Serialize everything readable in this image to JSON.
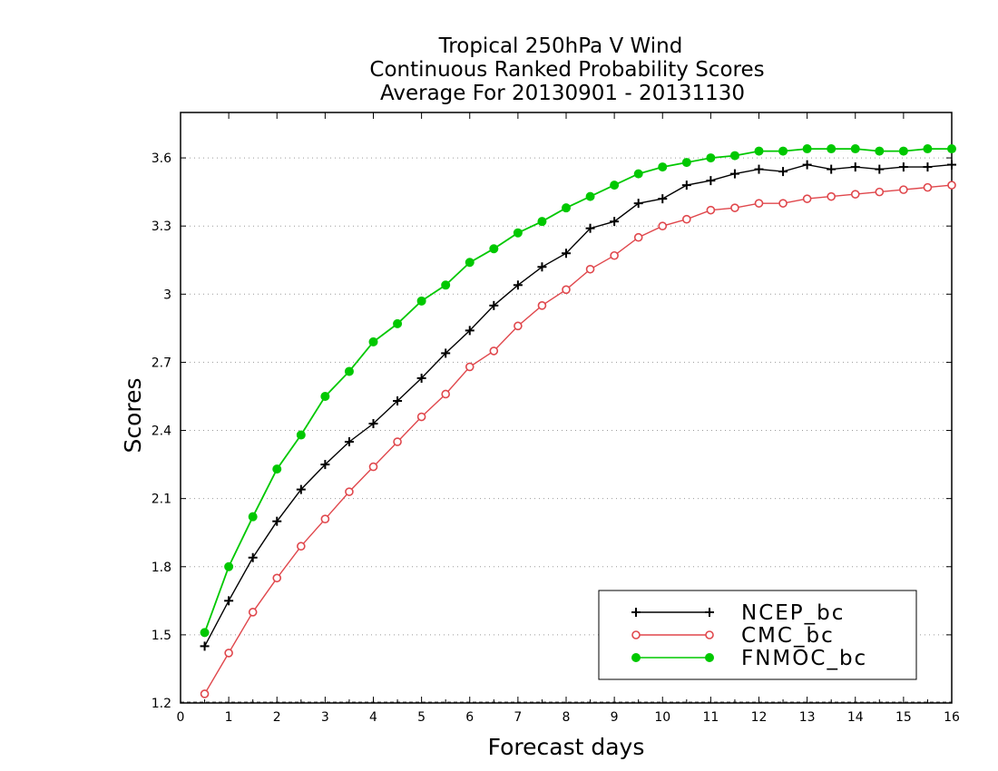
{
  "chart_data": {
    "type": "line",
    "title": [
      "Tropical 250hPa V Wind",
      "Continuous Ranked Probability Scores",
      "Average For 20130901 - 20131130"
    ],
    "xlabel": "Forecast days",
    "ylabel": "Scores",
    "xlim": [
      0,
      16
    ],
    "ylim": [
      1.2,
      3.8
    ],
    "xticks": [
      "0",
      "1",
      "2",
      "3",
      "4",
      "5",
      "6",
      "7",
      "8",
      "9",
      "10",
      "11",
      "12",
      "13",
      "14",
      "15",
      "16"
    ],
    "yticks": [
      "1.2",
      "1.5",
      "1.8",
      "2.1",
      "2.4",
      "2.7",
      "3",
      "3.3",
      "3.6"
    ],
    "grid": "horizontal dotted",
    "legend_position": "bottom-right",
    "x": [
      0.5,
      1,
      1.5,
      2,
      2.5,
      3,
      3.5,
      4,
      4.5,
      5,
      5.5,
      6,
      6.5,
      7,
      7.5,
      8,
      8.5,
      9,
      9.5,
      10,
      10.5,
      11,
      11.5,
      12,
      12.5,
      13,
      13.5,
      14,
      14.5,
      15,
      15.5,
      16
    ],
    "series": [
      {
        "name": "NCEP_bc",
        "color": "#000000",
        "marker": "plus",
        "values": [
          1.45,
          1.65,
          1.84,
          2.0,
          2.14,
          2.25,
          2.35,
          2.43,
          2.53,
          2.63,
          2.74,
          2.84,
          2.95,
          3.04,
          3.12,
          3.18,
          3.29,
          3.32,
          3.4,
          3.42,
          3.48,
          3.5,
          3.53,
          3.55,
          3.54,
          3.57,
          3.55,
          3.56,
          3.55,
          3.56,
          3.56,
          3.57
        ]
      },
      {
        "name": "CMC_bc",
        "color": "#e0474c",
        "marker": "open-circle",
        "values": [
          1.24,
          1.42,
          1.6,
          1.75,
          1.89,
          2.01,
          2.13,
          2.24,
          2.35,
          2.46,
          2.56,
          2.68,
          2.75,
          2.86,
          2.95,
          3.02,
          3.11,
          3.17,
          3.25,
          3.3,
          3.33,
          3.37,
          3.38,
          3.4,
          3.4,
          3.42,
          3.43,
          3.44,
          3.45,
          3.46,
          3.47,
          3.48
        ]
      },
      {
        "name": "FNMOC_bc",
        "color": "#00c800",
        "marker": "filled-circle",
        "values": [
          1.51,
          1.8,
          2.02,
          2.23,
          2.38,
          2.55,
          2.66,
          2.79,
          2.87,
          2.97,
          3.04,
          3.14,
          3.2,
          3.27,
          3.32,
          3.38,
          3.43,
          3.48,
          3.53,
          3.56,
          3.58,
          3.6,
          3.61,
          3.63,
          3.63,
          3.64,
          3.64,
          3.64,
          3.63,
          3.63,
          3.64,
          3.64
        ]
      }
    ]
  }
}
